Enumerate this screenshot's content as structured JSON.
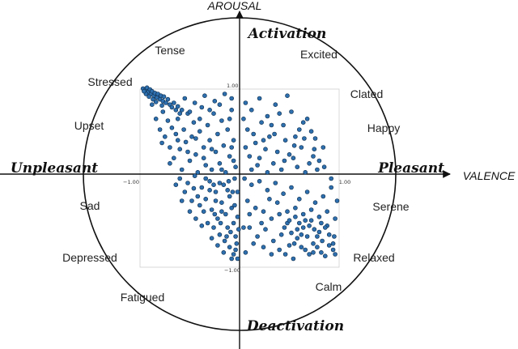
{
  "chart_data": {
    "type": "scatter",
    "x_axis_title": "VALENCE",
    "y_axis_title": "AROUSAL",
    "xlim": [
      -1.0,
      1.0
    ],
    "ylim": [
      -1.0,
      1.0
    ],
    "ticks": {
      "x_min": "−1.00",
      "x_max": "1.00",
      "y_max": "1.00",
      "y_min": "−1.00"
    },
    "poles": {
      "top": "Activation",
      "bottom": "Deactivation",
      "left": "Unpleasant",
      "right": "Pleasant"
    },
    "emotions": [
      "Tense",
      "Excited",
      "Stressed",
      "Clated",
      "Upset",
      "Happy",
      "Sad",
      "Serene",
      "Depressed",
      "Relaxed",
      "Fatigued",
      "Calm"
    ],
    "point_color": "#2e6fae",
    "point_stroke": "#0d2c4a",
    "grid": false,
    "points": [
      [
        -0.97,
        0.96
      ],
      [
        -0.95,
        0.94
      ],
      [
        -0.93,
        0.97
      ],
      [
        -0.92,
        0.92
      ],
      [
        -0.9,
        0.95
      ],
      [
        -0.89,
        0.9
      ],
      [
        -0.88,
        0.93
      ],
      [
        -0.86,
        0.88
      ],
      [
        -0.85,
        0.91
      ],
      [
        -0.83,
        0.86
      ],
      [
        -0.82,
        0.9
      ],
      [
        -0.8,
        0.84
      ],
      [
        -0.79,
        0.88
      ],
      [
        -0.77,
        0.82
      ],
      [
        -0.76,
        0.87
      ],
      [
        -0.74,
        0.8
      ],
      [
        -0.72,
        0.84
      ],
      [
        -0.7,
        0.78
      ],
      [
        -0.68,
        0.75
      ],
      [
        -0.66,
        0.8
      ],
      [
        -0.64,
        0.72
      ],
      [
        -0.62,
        0.76
      ],
      [
        -0.6,
        0.68
      ],
      [
        -0.58,
        0.72
      ],
      [
        -0.94,
        0.9
      ],
      [
        -0.91,
        0.87
      ],
      [
        -0.87,
        0.84
      ],
      [
        -0.96,
        0.93
      ],
      [
        -0.84,
        0.81
      ],
      [
        -0.78,
        0.77
      ],
      [
        -0.88,
        0.78
      ],
      [
        -0.84,
        0.62
      ],
      [
        -0.8,
        0.5
      ],
      [
        -0.77,
        0.7
      ],
      [
        -0.75,
        0.42
      ],
      [
        -0.72,
        0.6
      ],
      [
        -0.7,
        0.3
      ],
      [
        -0.68,
        0.52
      ],
      [
        -0.66,
        0.18
      ],
      [
        -0.64,
        0.45
      ],
      [
        -0.62,
        0.62
      ],
      [
        -0.6,
        0.28
      ],
      [
        -0.58,
        0.05
      ],
      [
        -0.56,
        0.5
      ],
      [
        -0.54,
        0.36
      ],
      [
        -0.52,
        0.68
      ],
      [
        -0.5,
        0.15
      ],
      [
        -0.48,
        0.42
      ],
      [
        -0.46,
        0.58
      ],
      [
        -0.44,
        0.22
      ],
      [
        -0.42,
        0.02
      ],
      [
        -0.4,
        0.48
      ],
      [
        -0.38,
        0.75
      ],
      [
        -0.36,
        0.3
      ],
      [
        -0.34,
        0.1
      ],
      [
        -0.32,
        0.55
      ],
      [
        -0.3,
        0.38
      ],
      [
        -0.28,
        0.05
      ],
      [
        -0.26,
        0.68
      ],
      [
        -0.24,
        0.25
      ],
      [
        -0.22,
        0.45
      ],
      [
        -0.2,
        0.12
      ],
      [
        -0.18,
        0.6
      ],
      [
        -0.16,
        0.32
      ],
      [
        -0.14,
        0.02
      ],
      [
        -0.12,
        0.5
      ],
      [
        -0.1,
        0.2
      ],
      [
        -0.08,
        0.72
      ],
      [
        -0.06,
        0.38
      ],
      [
        -0.04,
        0.08
      ],
      [
        -0.55,
        0.85
      ],
      [
        -0.45,
        0.8
      ],
      [
        -0.35,
        0.88
      ],
      [
        -0.25,
        0.82
      ],
      [
        -0.15,
        0.9
      ],
      [
        -0.08,
        0.85
      ],
      [
        -0.5,
        0.7
      ],
      [
        -0.4,
        0.62
      ],
      [
        -0.3,
        0.72
      ],
      [
        -0.2,
        0.78
      ],
      [
        -0.1,
        0.62
      ],
      [
        -0.78,
        0.35
      ],
      [
        -0.7,
        0.12
      ],
      [
        -0.62,
        0.38
      ],
      [
        -0.52,
        0.25
      ],
      [
        -0.44,
        0.4
      ],
      [
        -0.36,
        0.18
      ],
      [
        -0.28,
        0.28
      ],
      [
        -0.18,
        0.05
      ],
      [
        -0.08,
        0.3
      ],
      [
        -0.6,
        -0.05
      ],
      [
        -0.52,
        -0.1
      ],
      [
        -0.45,
        -0.02
      ],
      [
        -0.38,
        -0.15
      ],
      [
        -0.3,
        -0.08
      ],
      [
        -0.24,
        -0.2
      ],
      [
        -0.16,
        -0.12
      ],
      [
        -0.1,
        -0.25
      ],
      [
        -0.05,
        -0.05
      ],
      [
        -0.55,
        -0.2
      ],
      [
        -0.48,
        -0.3
      ],
      [
        -0.4,
        -0.35
      ],
      [
        -0.34,
        -0.28
      ],
      [
        -0.28,
        -0.4
      ],
      [
        -0.22,
        -0.5
      ],
      [
        -0.18,
        -0.32
      ],
      [
        -0.14,
        -0.45
      ],
      [
        -0.12,
        -0.6
      ],
      [
        -0.08,
        -0.38
      ],
      [
        -0.06,
        -0.55
      ],
      [
        -0.04,
        -0.7
      ],
      [
        -0.02,
        -0.48
      ],
      [
        -0.32,
        -0.55
      ],
      [
        -0.26,
        -0.6
      ],
      [
        -0.2,
        -0.68
      ],
      [
        -0.15,
        -0.75
      ],
      [
        -0.1,
        -0.82
      ],
      [
        -0.06,
        -0.9
      ],
      [
        -0.03,
        -0.78
      ],
      [
        -0.01,
        -0.62
      ],
      [
        -0.25,
        -0.45
      ],
      [
        -0.3,
        -0.18
      ],
      [
        -0.36,
        -0.42
      ],
      [
        -0.42,
        -0.25
      ],
      [
        -0.5,
        -0.42
      ],
      [
        -0.07,
        -0.2
      ],
      [
        -0.11,
        -0.08
      ],
      [
        -0.19,
        -0.55
      ],
      [
        -0.13,
        -0.7
      ],
      [
        -0.09,
        -0.65
      ],
      [
        -0.05,
        -0.35
      ],
      [
        -0.02,
        -0.2
      ],
      [
        -0.04,
        -0.85
      ],
      [
        -0.08,
        -0.95
      ],
      [
        -0.16,
        -0.88
      ],
      [
        -0.22,
        -0.8
      ],
      [
        -0.02,
        -0.95
      ],
      [
        -0.28,
        -0.72
      ],
      [
        -0.18,
        -0.42
      ],
      [
        -0.24,
        -0.3
      ],
      [
        -0.44,
        -0.5
      ],
      [
        -0.38,
        -0.58
      ],
      [
        -0.2,
        -0.1
      ],
      [
        -0.12,
        -0.18
      ],
      [
        -0.06,
        0.15
      ],
      [
        -0.58,
        -0.3
      ],
      [
        -0.64,
        -0.12
      ],
      [
        -0.46,
        -0.16
      ],
      [
        -0.34,
        -0.05
      ],
      [
        -0.26,
        -0.12
      ],
      [
        0.06,
        0.8
      ],
      [
        0.12,
        0.72
      ],
      [
        0.2,
        0.85
      ],
      [
        0.28,
        0.65
      ],
      [
        0.36,
        0.78
      ],
      [
        0.44,
        0.55
      ],
      [
        0.52,
        0.7
      ],
      [
        0.6,
        0.5
      ],
      [
        0.68,
        0.62
      ],
      [
        0.76,
        0.4
      ],
      [
        0.84,
        0.3
      ],
      [
        0.08,
        0.5
      ],
      [
        0.16,
        0.35
      ],
      [
        0.22,
        0.58
      ],
      [
        0.3,
        0.42
      ],
      [
        0.38,
        0.25
      ],
      [
        0.46,
        0.38
      ],
      [
        0.54,
        0.18
      ],
      [
        0.62,
        0.3
      ],
      [
        0.7,
        0.12
      ],
      [
        0.78,
        0.05
      ],
      [
        0.1,
        0.2
      ],
      [
        0.18,
        0.1
      ],
      [
        0.26,
        0.28
      ],
      [
        0.34,
        0.12
      ],
      [
        0.42,
        0.05
      ],
      [
        0.5,
        0.22
      ],
      [
        0.58,
        0.08
      ],
      [
        0.66,
        0.02
      ],
      [
        0.74,
        0.2
      ],
      [
        0.04,
        0.62
      ],
      [
        0.14,
        0.45
      ],
      [
        0.24,
        0.38
      ],
      [
        0.32,
        0.55
      ],
      [
        0.4,
        0.68
      ],
      [
        0.48,
        0.88
      ],
      [
        0.56,
        0.42
      ],
      [
        0.64,
        0.58
      ],
      [
        0.72,
        0.48
      ],
      [
        0.8,
        0.15
      ],
      [
        0.06,
        0.3
      ],
      [
        0.12,
        0.05
      ],
      [
        0.2,
        0.18
      ],
      [
        0.28,
        0.02
      ],
      [
        0.35,
        0.45
      ],
      [
        0.45,
        0.15
      ],
      [
        0.55,
        0.32
      ],
      [
        0.65,
        0.4
      ],
      [
        0.75,
        0.28
      ],
      [
        0.85,
        0.08
      ],
      [
        0.05,
        -0.05
      ],
      [
        0.12,
        -0.12
      ],
      [
        0.2,
        -0.08
      ],
      [
        0.28,
        -0.18
      ],
      [
        0.36,
        -0.1
      ],
      [
        0.44,
        -0.22
      ],
      [
        0.52,
        -0.15
      ],
      [
        0.6,
        -0.28
      ],
      [
        0.68,
        -0.2
      ],
      [
        0.76,
        -0.32
      ],
      [
        0.84,
        -0.25
      ],
      [
        0.92,
        -0.15
      ],
      [
        0.08,
        -0.3
      ],
      [
        0.16,
        -0.38
      ],
      [
        0.24,
        -0.42
      ],
      [
        0.32,
        -0.5
      ],
      [
        0.4,
        -0.45
      ],
      [
        0.48,
        -0.55
      ],
      [
        0.56,
        -0.48
      ],
      [
        0.64,
        -0.6
      ],
      [
        0.72,
        -0.52
      ],
      [
        0.8,
        -0.65
      ],
      [
        0.88,
        -0.58
      ],
      [
        0.95,
        -0.7
      ],
      [
        0.1,
        -0.6
      ],
      [
        0.18,
        -0.7
      ],
      [
        0.26,
        -0.62
      ],
      [
        0.34,
        -0.75
      ],
      [
        0.42,
        -0.68
      ],
      [
        0.5,
        -0.8
      ],
      [
        0.58,
        -0.72
      ],
      [
        0.66,
        -0.85
      ],
      [
        0.74,
        -0.78
      ],
      [
        0.82,
        -0.88
      ],
      [
        0.9,
        -0.8
      ],
      [
        0.96,
        -0.9
      ],
      [
        0.45,
        -0.6
      ],
      [
        0.52,
        -0.66
      ],
      [
        0.6,
        -0.55
      ],
      [
        0.68,
        -0.7
      ],
      [
        0.75,
        -0.62
      ],
      [
        0.83,
        -0.75
      ],
      [
        0.9,
        -0.68
      ],
      [
        0.55,
        -0.78
      ],
      [
        0.62,
        -0.82
      ],
      [
        0.7,
        -0.9
      ],
      [
        0.78,
        -0.82
      ],
      [
        0.86,
        -0.92
      ],
      [
        0.94,
        -0.85
      ],
      [
        0.48,
        -0.42
      ],
      [
        0.56,
        -0.38
      ],
      [
        0.64,
        -0.45
      ],
      [
        0.72,
        -0.4
      ],
      [
        0.8,
        -0.48
      ],
      [
        0.88,
        -0.42
      ],
      [
        0.96,
        -0.5
      ],
      [
        0.98,
        -0.3
      ],
      [
        0.92,
        -0.05
      ],
      [
        0.3,
        -0.28
      ],
      [
        0.22,
        -0.55
      ],
      [
        0.14,
        -0.78
      ],
      [
        0.06,
        -0.88
      ],
      [
        0.1,
        -0.45
      ],
      [
        0.04,
        -0.6
      ],
      [
        0.38,
        -0.32
      ],
      [
        0.46,
        -0.9
      ],
      [
        0.54,
        -0.95
      ],
      [
        0.62,
        -0.68
      ],
      [
        0.7,
        -0.58
      ],
      [
        0.78,
        -0.7
      ],
      [
        0.86,
        -0.6
      ],
      [
        0.94,
        -0.78
      ],
      [
        0.4,
        -0.85
      ],
      [
        0.32,
        -0.9
      ],
      [
        0.24,
        -0.82
      ],
      [
        0.5,
        -0.52
      ],
      [
        0.58,
        -0.62
      ],
      [
        0.66,
        -0.52
      ],
      [
        0.74,
        -0.88
      ],
      [
        0.82,
        -0.55
      ]
    ]
  }
}
